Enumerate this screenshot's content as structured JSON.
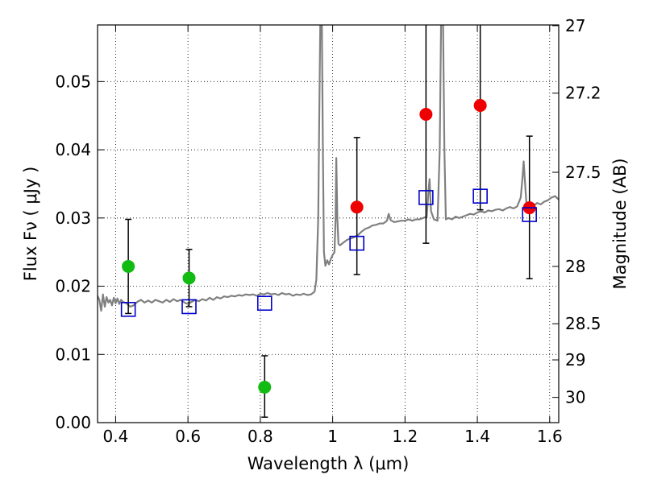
{
  "chart_data": {
    "type": "scatter",
    "xlabel": "Wavelength  λ (μm)",
    "ylabel": "Flux  Fν  ( μJy )",
    "y2label": "Magnitude (AB)",
    "xlim": [
      0.35,
      1.625
    ],
    "ylim": [
      0.0,
      0.0583
    ],
    "grid": true,
    "x_ticks": [
      0.4,
      0.6,
      0.8,
      1.0,
      1.2,
      1.4,
      1.6
    ],
    "x_tick_labels": [
      "0.4",
      "0.6",
      "0.8",
      "1",
      "1.2",
      "1.4",
      "1.6"
    ],
    "y_ticks": [
      0.0,
      0.01,
      0.02,
      0.03,
      0.04,
      0.05
    ],
    "y_tick_labels": [
      "0.00",
      "0.01",
      "0.02",
      "0.03",
      "0.04",
      "0.05"
    ],
    "y2_ticks": [
      {
        "label": "27",
        "flux": 0.0582
      },
      {
        "label": "27.2",
        "flux": 0.0483
      },
      {
        "label": "27.5",
        "flux": 0.0367
      },
      {
        "label": "28",
        "flux": 0.0229
      },
      {
        "label": "28.5",
        "flux": 0.0145
      },
      {
        "label": "29",
        "flux": 0.0092
      },
      {
        "label": "30",
        "flux": 0.0037
      }
    ],
    "colors": {
      "spectrum": "#808080",
      "green": "#11bb11",
      "red": "#ee0000",
      "model_box": "#0000cc",
      "errorbar": "#000000"
    },
    "series": [
      {
        "marker": "circle",
        "color": "green",
        "points": [
          {
            "x": 0.435,
            "y": 0.0229,
            "yerr_low": 0.0069,
            "yerr_high": 0.0069
          },
          {
            "x": 0.603,
            "y": 0.0212,
            "yerr_low": 0.0042,
            "yerr_high": 0.0042
          },
          {
            "x": 0.812,
            "y": 0.0052,
            "yerr_low": 0.0044,
            "yerr_high": 0.0046
          }
        ]
      },
      {
        "marker": "circle",
        "color": "red",
        "points": [
          {
            "x": 1.067,
            "y": 0.0316,
            "yerr_low": 0.0099,
            "yerr_high": 0.0102
          },
          {
            "x": 1.258,
            "y": 0.0452,
            "yerr_low": 0.0189,
            "yerr_high": 0.015
          },
          {
            "x": 1.408,
            "y": 0.0465,
            "yerr_low": 0.0153,
            "yerr_high": 0.013
          },
          {
            "x": 1.544,
            "y": 0.0315,
            "yerr_low": 0.0104,
            "yerr_high": 0.0105
          }
        ]
      },
      {
        "marker": "open-square",
        "color": "model_box",
        "points": [
          {
            "x": 0.435,
            "y": 0.0166
          },
          {
            "x": 0.603,
            "y": 0.017
          },
          {
            "x": 0.812,
            "y": 0.0175
          },
          {
            "x": 1.067,
            "y": 0.0263
          },
          {
            "x": 1.258,
            "y": 0.033
          },
          {
            "x": 1.408,
            "y": 0.0332
          },
          {
            "x": 1.544,
            "y": 0.0305
          }
        ]
      }
    ],
    "spectrum": [
      [
        0.35,
        0.0186
      ],
      [
        0.355,
        0.018
      ],
      [
        0.36,
        0.0164
      ],
      [
        0.365,
        0.0188
      ],
      [
        0.37,
        0.017
      ],
      [
        0.375,
        0.0184
      ],
      [
        0.38,
        0.0176
      ],
      [
        0.385,
        0.018
      ],
      [
        0.39,
        0.0172
      ],
      [
        0.395,
        0.0183
      ],
      [
        0.4,
        0.0175
      ],
      [
        0.405,
        0.0182
      ],
      [
        0.41,
        0.0174
      ],
      [
        0.415,
        0.018
      ],
      [
        0.42,
        0.0177
      ],
      [
        0.43,
        0.0175
      ],
      [
        0.44,
        0.017
      ],
      [
        0.45,
        0.0172
      ],
      [
        0.46,
        0.0177
      ],
      [
        0.47,
        0.018
      ],
      [
        0.48,
        0.0176
      ],
      [
        0.49,
        0.0179
      ],
      [
        0.5,
        0.0176
      ],
      [
        0.51,
        0.018
      ],
      [
        0.52,
        0.0178
      ],
      [
        0.53,
        0.0176
      ],
      [
        0.54,
        0.018
      ],
      [
        0.55,
        0.0177
      ],
      [
        0.56,
        0.0181
      ],
      [
        0.57,
        0.0178
      ],
      [
        0.58,
        0.018
      ],
      [
        0.59,
        0.0176
      ],
      [
        0.6,
        0.0174
      ],
      [
        0.61,
        0.0177
      ],
      [
        0.62,
        0.018
      ],
      [
        0.63,
        0.0178
      ],
      [
        0.64,
        0.0181
      ],
      [
        0.65,
        0.0179
      ],
      [
        0.66,
        0.0183
      ],
      [
        0.67,
        0.018
      ],
      [
        0.68,
        0.0184
      ],
      [
        0.69,
        0.0182
      ],
      [
        0.7,
        0.0185
      ],
      [
        0.71,
        0.0184
      ],
      [
        0.72,
        0.0186
      ],
      [
        0.73,
        0.0185
      ],
      [
        0.74,
        0.0187
      ],
      [
        0.75,
        0.0186
      ],
      [
        0.76,
        0.0188
      ],
      [
        0.77,
        0.0187
      ],
      [
        0.78,
        0.0188
      ],
      [
        0.79,
        0.0186
      ],
      [
        0.8,
        0.0189
      ],
      [
        0.81,
        0.0188
      ],
      [
        0.82,
        0.019
      ],
      [
        0.83,
        0.0188
      ],
      [
        0.84,
        0.0189
      ],
      [
        0.85,
        0.0187
      ],
      [
        0.86,
        0.019
      ],
      [
        0.87,
        0.0188
      ],
      [
        0.88,
        0.0189
      ],
      [
        0.89,
        0.0186
      ],
      [
        0.9,
        0.0188
      ],
      [
        0.91,
        0.0187
      ],
      [
        0.92,
        0.0189
      ],
      [
        0.93,
        0.0187
      ],
      [
        0.94,
        0.0188
      ],
      [
        0.95,
        0.0192
      ],
      [
        0.955,
        0.021
      ],
      [
        0.96,
        0.03
      ],
      [
        0.963,
        0.045
      ],
      [
        0.966,
        0.06
      ],
      [
        0.97,
        0.06
      ],
      [
        0.973,
        0.04
      ],
      [
        0.976,
        0.025
      ],
      [
        0.98,
        0.023
      ],
      [
        0.985,
        0.0238
      ],
      [
        0.99,
        0.0232
      ],
      [
        0.995,
        0.024
      ],
      [
        1.0,
        0.0246
      ],
      [
        1.005,
        0.025
      ],
      [
        1.008,
        0.03
      ],
      [
        1.01,
        0.0388
      ],
      [
        1.013,
        0.03
      ],
      [
        1.016,
        0.0262
      ],
      [
        1.02,
        0.026
      ],
      [
        1.03,
        0.0264
      ],
      [
        1.04,
        0.0268
      ],
      [
        1.05,
        0.027
      ],
      [
        1.06,
        0.0272
      ],
      [
        1.07,
        0.0275
      ],
      [
        1.08,
        0.028
      ],
      [
        1.09,
        0.0284
      ],
      [
        1.1,
        0.0286
      ],
      [
        1.11,
        0.0289
      ],
      [
        1.12,
        0.029
      ],
      [
        1.13,
        0.0292
      ],
      [
        1.14,
        0.0292
      ],
      [
        1.15,
        0.0296
      ],
      [
        1.155,
        0.0306
      ],
      [
        1.16,
        0.0297
      ],
      [
        1.17,
        0.0294
      ],
      [
        1.18,
        0.0295
      ],
      [
        1.19,
        0.0296
      ],
      [
        1.2,
        0.0296
      ],
      [
        1.21,
        0.0298
      ],
      [
        1.22,
        0.0296
      ],
      [
        1.23,
        0.0298
      ],
      [
        1.24,
        0.0298
      ],
      [
        1.25,
        0.03
      ],
      [
        1.26,
        0.0302
      ],
      [
        1.265,
        0.034
      ],
      [
        1.268,
        0.0357
      ],
      [
        1.272,
        0.031
      ],
      [
        1.28,
        0.0298
      ],
      [
        1.29,
        0.0296
      ],
      [
        1.296,
        0.04
      ],
      [
        1.3,
        0.06
      ],
      [
        1.305,
        0.06
      ],
      [
        1.309,
        0.04
      ],
      [
        1.313,
        0.0298
      ],
      [
        1.32,
        0.03
      ],
      [
        1.33,
        0.0298
      ],
      [
        1.34,
        0.0302
      ],
      [
        1.35,
        0.03
      ],
      [
        1.36,
        0.0302
      ],
      [
        1.37,
        0.0304
      ],
      [
        1.38,
        0.0306
      ],
      [
        1.39,
        0.0305
      ],
      [
        1.4,
        0.0308
      ],
      [
        1.41,
        0.031
      ],
      [
        1.42,
        0.0308
      ],
      [
        1.43,
        0.0311
      ],
      [
        1.44,
        0.031
      ],
      [
        1.45,
        0.0312
      ],
      [
        1.46,
        0.0313
      ],
      [
        1.47,
        0.0311
      ],
      [
        1.48,
        0.0314
      ],
      [
        1.49,
        0.0316
      ],
      [
        1.5,
        0.0314
      ],
      [
        1.51,
        0.0317
      ],
      [
        1.52,
        0.033
      ],
      [
        1.525,
        0.036
      ],
      [
        1.528,
        0.0383
      ],
      [
        1.532,
        0.035
      ],
      [
        1.536,
        0.0318
      ],
      [
        1.545,
        0.0316
      ],
      [
        1.555,
        0.0318
      ],
      [
        1.565,
        0.0322
      ],
      [
        1.575,
        0.032
      ],
      [
        1.585,
        0.0324
      ],
      [
        1.595,
        0.0326
      ],
      [
        1.605,
        0.033
      ],
      [
        1.615,
        0.0332
      ],
      [
        1.625,
        0.0327
      ]
    ]
  }
}
